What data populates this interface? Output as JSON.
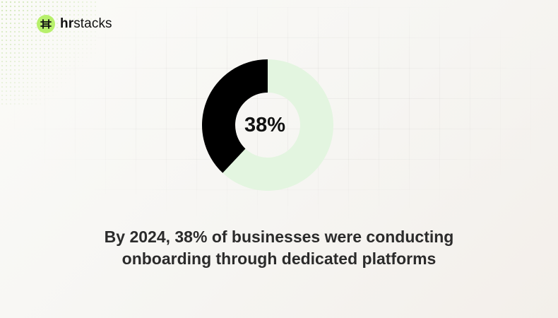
{
  "brand": {
    "name_bold": "hr",
    "name_rest": "stacks",
    "logo_icon": "hr-stacks-logo-icon",
    "accent": "#b7f06b"
  },
  "chart_data": {
    "type": "pie",
    "donut": true,
    "center_label": "38%",
    "slices": [
      {
        "value": 38,
        "color": "#000000"
      },
      {
        "value": 62,
        "color": "#e3f5e0"
      }
    ]
  },
  "caption": {
    "line1": "By 2024, 38% of businesses were conducting",
    "line2": "onboarding through dedicated platforms"
  }
}
